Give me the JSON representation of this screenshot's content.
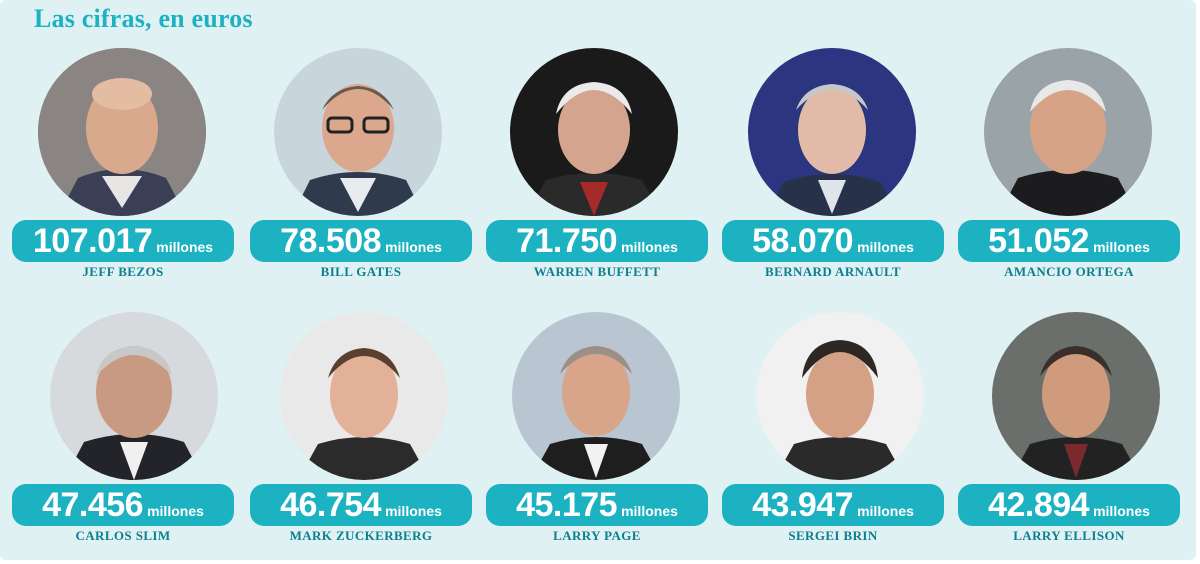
{
  "title": "Las cifras, en euros",
  "colors": {
    "accent": "#1db2c2",
    "background": "#e0f1f3",
    "name_text": "#0d7f8f"
  },
  "people": [
    {
      "amount": "107.017",
      "unit": "millones",
      "name": "JEFF BEZOS"
    },
    {
      "amount": "78.508",
      "unit": "millones",
      "name": "BILL GATES"
    },
    {
      "amount": "71.750",
      "unit": "millones",
      "name": "WARREN BUFFETT"
    },
    {
      "amount": "58.070",
      "unit": "millones",
      "name": "BERNARD ARNAULT"
    },
    {
      "amount": "51.052",
      "unit": "millones",
      "name": "AMANCIO ORTEGA"
    },
    {
      "amount": "47.456",
      "unit": "millones",
      "name": "CARLOS SLIM"
    },
    {
      "amount": "46.754",
      "unit": "millones",
      "name": "MARK ZUCKERBERG"
    },
    {
      "amount": "45.175",
      "unit": "millones",
      "name": "LARRY PAGE"
    },
    {
      "amount": "43.947",
      "unit": "millones",
      "name": "SERGEI BRIN"
    },
    {
      "amount": "42.894",
      "unit": "millones",
      "name": "LARRY ELLISON"
    }
  ]
}
